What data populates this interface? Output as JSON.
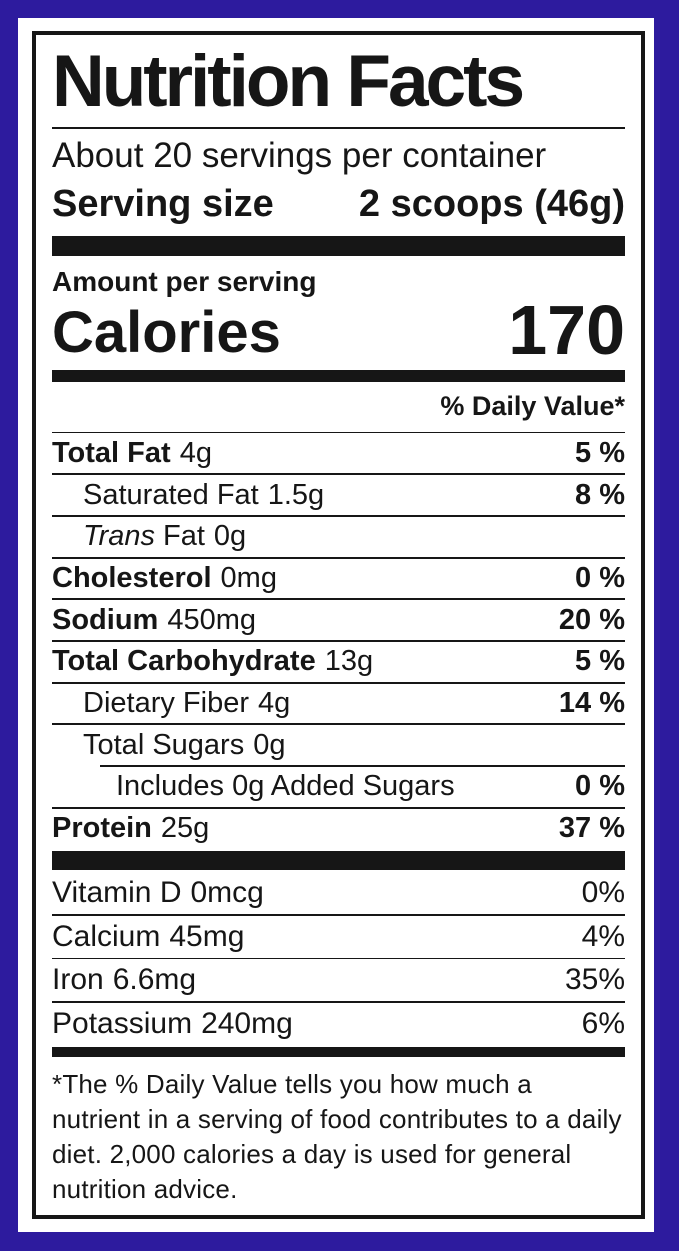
{
  "colors": {
    "frame_purple": "#2d1b9e",
    "ink_black": "#161616",
    "background_white": "#ffffff"
  },
  "label": {
    "title": "Nutrition Facts",
    "servings_per_container": "About 20 servings per container",
    "serving_size": {
      "label": "Serving size",
      "value": "2 scoops (46g)"
    },
    "amount_per_serving": "Amount per serving",
    "calories": {
      "label": "Calories",
      "value": "170"
    },
    "daily_value_header": "% Daily Value*",
    "nutrients": [
      {
        "name": "Total Fat",
        "amount": "4g",
        "dv": "5 %"
      },
      {
        "name": "Saturated Fat",
        "amount": "1.5g",
        "dv": "8 %"
      },
      {
        "italic": "Trans",
        "name": "Fat",
        "amount": "0g",
        "dv": ""
      },
      {
        "name": "Cholesterol",
        "amount": "0mg",
        "dv": "0 %"
      },
      {
        "name": "Sodium",
        "amount": "450mg",
        "dv": "20 %"
      },
      {
        "name": "Total Carbohydrate",
        "amount": "13g",
        "dv": "5 %"
      },
      {
        "name": "Dietary Fiber",
        "amount": "4g",
        "dv": "14 %"
      },
      {
        "name": "Total Sugars",
        "amount": "0g",
        "dv": ""
      },
      {
        "name": "Includes 0g Added Sugars",
        "amount": "",
        "dv": "0 %"
      },
      {
        "name": "Protein",
        "amount": "25g",
        "dv": "37 %"
      }
    ],
    "micronutrients": [
      {
        "name": "Vitamin D",
        "amount": "0mcg",
        "dv": "0%"
      },
      {
        "name": "Calcium",
        "amount": "45mg",
        "dv": "4%"
      },
      {
        "name": "Iron",
        "amount": "6.6mg",
        "dv": "35%"
      },
      {
        "name": "Potassium",
        "amount": "240mg",
        "dv": "6%"
      }
    ],
    "footnote": "*The % Daily Value tells you how much a nutrient in a serving of food contributes to a daily diet. 2,000 calories a day is used for general nutrition advice."
  }
}
